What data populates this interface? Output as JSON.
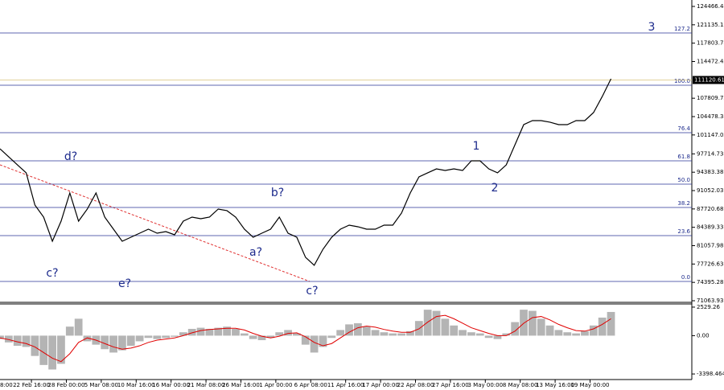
{
  "chart_data": [
    {
      "type": "line",
      "series": [
        {
          "name": "Price",
          "color": "#000000",
          "x": [
            0,
            1,
            2,
            3,
            4,
            5,
            6,
            7,
            8,
            9,
            10,
            11,
            12,
            13,
            14,
            15,
            16,
            17,
            18,
            19,
            20,
            21,
            22,
            23,
            24,
            25,
            26,
            27,
            28,
            29,
            30,
            31,
            32,
            33,
            34,
            35,
            36,
            37,
            38,
            39,
            40,
            41,
            42,
            43,
            44,
            45,
            46,
            47,
            48,
            49,
            50,
            51,
            52,
            53,
            54,
            55,
            56,
            57,
            58,
            59,
            60,
            61,
            62,
            63,
            64,
            65,
            66,
            67,
            68,
            69,
            70
          ],
          "values": [
            98640,
            97180,
            95720,
            94270,
            88430,
            86240,
            81860,
            85510,
            90620,
            85510,
            87700,
            90620,
            86240,
            84050,
            81860,
            82590,
            83320,
            84050,
            83320,
            83610,
            83030,
            85510,
            86240,
            85950,
            86240,
            87700,
            87410,
            86240,
            84050,
            82590,
            83320,
            84050,
            86240,
            83320,
            82590,
            78950,
            77490,
            80400,
            82590,
            84050,
            84780,
            84490,
            84050,
            84050,
            84780,
            84780,
            86970,
            90620,
            93540,
            94270,
            94990,
            94700,
            94990,
            94700,
            96450,
            96450,
            94990,
            94270,
            95720,
            99370,
            103020,
            103750,
            103750,
            103460,
            103020,
            103020,
            103750,
            103750,
            105210,
            108130,
            111340
          ]
        }
      ],
      "xlim": [
        0,
        79.26
      ],
      "xticks": [
        {
          "value": -0.4,
          "label": "8:00"
        },
        {
          "value": 3.6,
          "label": "22 Feb 16:00"
        },
        {
          "value": 7.6,
          "label": "28 Feb 00:00"
        },
        {
          "value": 11.6,
          "label": "5 Mar 08:00"
        },
        {
          "value": 15.6,
          "label": "10 Mar 16:00"
        },
        {
          "value": 19.6,
          "label": "16 Mar 00:00"
        },
        {
          "value": 23.6,
          "label": "21 Mar 08:00"
        },
        {
          "value": 27.6,
          "label": "26 Mar 16:00"
        },
        {
          "value": 31.6,
          "label": "1 Apr 00:00"
        },
        {
          "value": 35.6,
          "label": "6 Apr 08:00"
        },
        {
          "value": 39.6,
          "label": "11 Apr 16:00"
        },
        {
          "value": 43.6,
          "label": "17 Apr 00:00"
        },
        {
          "value": 47.6,
          "label": "22 Apr 08:00"
        },
        {
          "value": 51.6,
          "label": "27 Apr 16:00"
        },
        {
          "value": 55.6,
          "label": "3 May 00:00"
        },
        {
          "value": 59.6,
          "label": "8 May 08:00"
        },
        {
          "value": 63.6,
          "label": "13 May 16:00"
        },
        {
          "value": 67.6,
          "label": "19 May 00:00"
        }
      ],
      "ylim": [
        70918,
        125634
      ],
      "yticks": [
        124466.48,
        121135.13,
        117803.78,
        114472.43,
        107809.73,
        104478.38,
        101147.03,
        97714.73,
        94383.38,
        91052.03,
        87720.68,
        84389.33,
        81057.98,
        77726.63,
        74395.28,
        71063.93
      ],
      "last_price": 111120.61,
      "levels": [
        {
          "label": "127.2",
          "value": 119650
        },
        {
          "label": "100.0",
          "value": 110170
        },
        {
          "label": "76.4",
          "value": 101560
        },
        {
          "label": "61.8",
          "value": 96450
        },
        {
          "label": "50.0",
          "value": 92220
        },
        {
          "label": "38.2",
          "value": 87990
        },
        {
          "label": "23.6",
          "value": 82880
        },
        {
          "label": "0.0",
          "value": 74570
        }
      ],
      "annotations": [
        "3",
        "1",
        "2",
        "d?",
        "c?",
        "e?",
        "b?",
        "a?",
        "c?"
      ]
    },
    {
      "type": "macd",
      "series": [
        {
          "name": "Histogram",
          "color": "#b4b4b4",
          "values": [
            -300,
            -600,
            -900,
            -1000,
            -1800,
            -2600,
            -3000,
            -2500,
            800,
            1500,
            -500,
            -800,
            -1200,
            -1500,
            -1300,
            -900,
            -500,
            -200,
            -300,
            -200,
            -100,
            300,
            600,
            700,
            600,
            700,
            800,
            600,
            200,
            -300,
            -400,
            -200,
            300,
            500,
            200,
            -800,
            -1500,
            -1000,
            -200,
            500,
            1000,
            1100,
            800,
            500,
            300,
            200,
            200,
            400,
            1300,
            2300,
            2200,
            1500,
            900,
            500,
            300,
            200,
            -200,
            -300,
            200,
            1200,
            2300,
            2200,
            1500,
            900,
            500,
            300,
            200,
            400,
            900,
            1600,
            2100
          ]
        },
        {
          "name": "Signal",
          "color": "#e00000",
          "values": [
            -200,
            -350,
            -550,
            -700,
            -1000,
            -1500,
            -2000,
            -2300,
            -1600,
            -600,
            -200,
            -400,
            -700,
            -1000,
            -1200,
            -1100,
            -900,
            -600,
            -400,
            -300,
            -200,
            0,
            250,
            450,
            550,
            600,
            650,
            650,
            500,
            200,
            -50,
            -200,
            -50,
            200,
            250,
            -100,
            -600,
            -900,
            -700,
            -200,
            300,
            700,
            850,
            750,
            550,
            400,
            300,
            300,
            600,
            1200,
            1700,
            1800,
            1500,
            1100,
            700,
            450,
            200,
            0,
            0,
            400,
            1100,
            1600,
            1700,
            1400,
            1000,
            700,
            450,
            400,
            600,
            1000,
            1500
          ]
        }
      ],
      "ylim": [
        -3750,
        2810
      ],
      "yticks": [
        2529.26,
        {
          "value": 0,
          "label": "0.00"
        },
        -3398.464
      ]
    }
  ]
}
